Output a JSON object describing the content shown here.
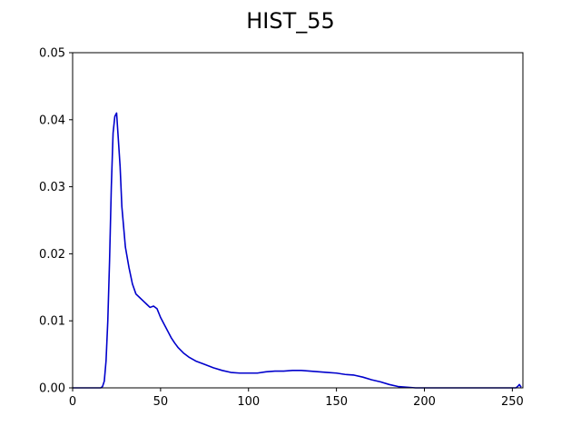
{
  "chart_data": {
    "type": "line",
    "title": "HIST_55",
    "xlabel": "",
    "ylabel": "",
    "xlim": [
      0,
      256
    ],
    "ylim": [
      0,
      0.05
    ],
    "x_ticks": [
      0,
      50,
      100,
      150,
      200,
      250
    ],
    "x_tick_labels": [
      "0",
      "50",
      "100",
      "150",
      "200",
      "250"
    ],
    "y_ticks": [
      0.0,
      0.01,
      0.02,
      0.03,
      0.04,
      0.05
    ],
    "y_tick_labels": [
      "0.00",
      "0.01",
      "0.02",
      "0.03",
      "0.04",
      "0.05"
    ],
    "grid": false,
    "series": [
      {
        "color": "#0000cc",
        "points": [
          [
            0,
            0
          ],
          [
            10,
            0
          ],
          [
            16,
            0
          ],
          [
            17,
            0.0002
          ],
          [
            18,
            0.001
          ],
          [
            19,
            0.004
          ],
          [
            20,
            0.01
          ],
          [
            21,
            0.019
          ],
          [
            22,
            0.03
          ],
          [
            23,
            0.038
          ],
          [
            24,
            0.0405
          ],
          [
            25,
            0.041
          ],
          [
            26,
            0.037
          ],
          [
            27,
            0.033
          ],
          [
            28,
            0.027
          ],
          [
            29,
            0.024
          ],
          [
            30,
            0.021
          ],
          [
            32,
            0.018
          ],
          [
            34,
            0.0155
          ],
          [
            36,
            0.014
          ],
          [
            38,
            0.0135
          ],
          [
            40,
            0.013
          ],
          [
            42,
            0.0125
          ],
          [
            44,
            0.012
          ],
          [
            46,
            0.0122
          ],
          [
            48,
            0.0118
          ],
          [
            50,
            0.0105
          ],
          [
            52,
            0.0095
          ],
          [
            54,
            0.0085
          ],
          [
            56,
            0.0075
          ],
          [
            58,
            0.0067
          ],
          [
            60,
            0.006
          ],
          [
            63,
            0.0052
          ],
          [
            66,
            0.0046
          ],
          [
            70,
            0.004
          ],
          [
            75,
            0.0035
          ],
          [
            80,
            0.003
          ],
          [
            85,
            0.0026
          ],
          [
            90,
            0.0023
          ],
          [
            95,
            0.0022
          ],
          [
            100,
            0.0022
          ],
          [
            105,
            0.0022
          ],
          [
            110,
            0.0024
          ],
          [
            115,
            0.0025
          ],
          [
            120,
            0.0025
          ],
          [
            125,
            0.0026
          ],
          [
            130,
            0.0026
          ],
          [
            135,
            0.0025
          ],
          [
            140,
            0.0024
          ],
          [
            145,
            0.0023
          ],
          [
            150,
            0.0022
          ],
          [
            155,
            0.002
          ],
          [
            160,
            0.0019
          ],
          [
            165,
            0.0016
          ],
          [
            170,
            0.0012
          ],
          [
            175,
            0.0009
          ],
          [
            180,
            0.0005
          ],
          [
            185,
            0.0002
          ],
          [
            190,
            0.0001
          ],
          [
            195,
            0
          ],
          [
            200,
            0
          ],
          [
            220,
            0
          ],
          [
            240,
            0
          ],
          [
            250,
            0
          ],
          [
            252,
            0
          ],
          [
            253,
            0.0002
          ],
          [
            254,
            0.0005
          ],
          [
            255,
            0.0001
          ]
        ]
      }
    ]
  }
}
